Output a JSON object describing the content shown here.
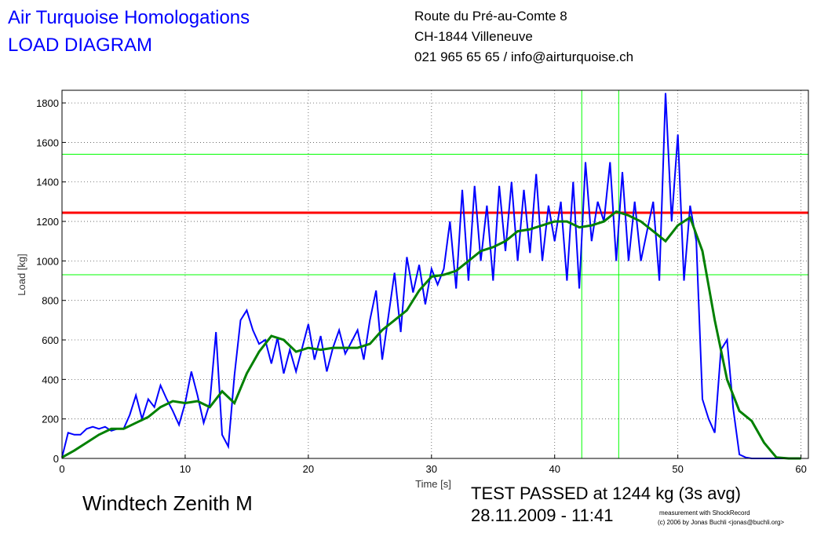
{
  "header": {
    "title": "Air Turquoise Homologations",
    "subtitle": "LOAD DIAGRAM",
    "address": [
      "Route du Pré-au-Comte 8",
      "CH-1844 Villeneuve",
      "021 965 65 65 / info@airturquoise.ch"
    ]
  },
  "footer": {
    "glider": "Windtech Zenith M",
    "result": "TEST PASSED at 1244 kg (3s avg)",
    "date": "28.11.2009 - 11:41",
    "credit": [
      "measurement with ShockRecord",
      "(c) 2006 by Jonas Buchli <jonas@buchli.org>"
    ]
  },
  "chart_data": {
    "type": "line",
    "xlabel": "Time [s]",
    "ylabel": "Load [kg]",
    "xlim": [
      0,
      60.6
    ],
    "ylim": [
      0,
      1864
    ],
    "xticks": [
      0,
      10,
      20,
      30,
      40,
      50,
      60
    ],
    "yticks": [
      0,
      200,
      400,
      600,
      800,
      1000,
      1200,
      1400,
      1600,
      1800
    ],
    "grid": true,
    "hlines": [
      {
        "value": 1244,
        "color": "#ff0000"
      },
      {
        "value": 1540,
        "color": "#00ff00"
      },
      {
        "value": 930,
        "color": "#00ff00"
      }
    ],
    "vlines": [
      {
        "value": 42.2,
        "color": "#00ff00"
      },
      {
        "value": 45.2,
        "color": "#00ff00"
      }
    ],
    "series": [
      {
        "color": "#0000ff",
        "x": [
          0,
          0.5,
          1,
          1.5,
          2,
          2.5,
          3,
          3.5,
          4,
          4.5,
          5,
          5.5,
          6,
          6.5,
          7,
          7.5,
          8,
          8.5,
          9,
          9.5,
          10,
          10.5,
          11,
          11.5,
          12,
          12.5,
          13,
          13.5,
          14,
          14.5,
          15,
          15.5,
          16,
          16.5,
          17,
          17.5,
          18,
          18.5,
          19,
          19.5,
          20,
          20.5,
          21,
          21.5,
          22,
          22.5,
          23,
          23.5,
          24,
          24.5,
          25,
          25.5,
          26,
          26.5,
          27,
          27.5,
          28,
          28.5,
          29,
          29.5,
          30,
          30.5,
          31,
          31.5,
          32,
          32.5,
          33,
          33.5,
          34,
          34.5,
          35,
          35.5,
          36,
          36.5,
          37,
          37.5,
          38,
          38.5,
          39,
          39.5,
          40,
          40.5,
          41,
          41.5,
          42,
          42.5,
          43,
          43.5,
          44,
          44.5,
          45,
          45.5,
          46,
          46.5,
          47,
          47.5,
          48,
          48.5,
          49,
          49.5,
          50,
          50.5,
          51,
          51.5,
          52,
          52.5,
          53,
          53.5,
          54,
          54.5,
          55,
          55.5,
          56,
          57,
          58,
          59,
          60
        ],
        "values": [
          5,
          130,
          120,
          120,
          150,
          160,
          150,
          160,
          140,
          150,
          150,
          220,
          320,
          200,
          300,
          260,
          370,
          300,
          240,
          170,
          280,
          440,
          320,
          180,
          280,
          640,
          120,
          60,
          420,
          700,
          750,
          650,
          580,
          600,
          480,
          610,
          430,
          550,
          440,
          560,
          680,
          500,
          620,
          440,
          560,
          650,
          530,
          590,
          650,
          500,
          700,
          850,
          500,
          720,
          940,
          640,
          1020,
          840,
          980,
          780,
          960,
          880,
          960,
          1200,
          860,
          1360,
          900,
          1380,
          1000,
          1280,
          900,
          1380,
          1050,
          1400,
          1000,
          1360,
          1040,
          1440,
          1000,
          1280,
          1100,
          1300,
          900,
          1400,
          860,
          1500,
          1100,
          1300,
          1200,
          1500,
          1000,
          1450,
          1000,
          1300,
          1000,
          1150,
          1300,
          900,
          1850,
          1200,
          1640,
          900,
          1280,
          1100,
          300,
          200,
          130,
          550,
          600,
          250,
          20,
          5,
          0,
          0,
          0,
          0,
          0
        ]
      },
      {
        "color": "#008000",
        "x": [
          0,
          1,
          2,
          3,
          4,
          5,
          6,
          7,
          8,
          9,
          10,
          11,
          12,
          13,
          14,
          15,
          16,
          17,
          18,
          19,
          20,
          21,
          22,
          23,
          24,
          25,
          26,
          27,
          28,
          29,
          30,
          31,
          32,
          33,
          34,
          35,
          36,
          37,
          38,
          39,
          40,
          41,
          42,
          43,
          44,
          45,
          46,
          47,
          48,
          49,
          50,
          51,
          52,
          53,
          54,
          55,
          56,
          57,
          58,
          59,
          60
        ],
        "values": [
          5,
          40,
          80,
          120,
          150,
          150,
          180,
          210,
          260,
          290,
          280,
          290,
          260,
          340,
          280,
          430,
          540,
          620,
          600,
          540,
          560,
          550,
          560,
          560,
          560,
          580,
          650,
          700,
          750,
          850,
          920,
          930,
          950,
          1000,
          1050,
          1070,
          1100,
          1150,
          1160,
          1180,
          1200,
          1200,
          1170,
          1180,
          1200,
          1250,
          1230,
          1200,
          1150,
          1100,
          1180,
          1220,
          1050,
          700,
          400,
          240,
          190,
          80,
          5,
          0,
          0
        ]
      }
    ]
  }
}
